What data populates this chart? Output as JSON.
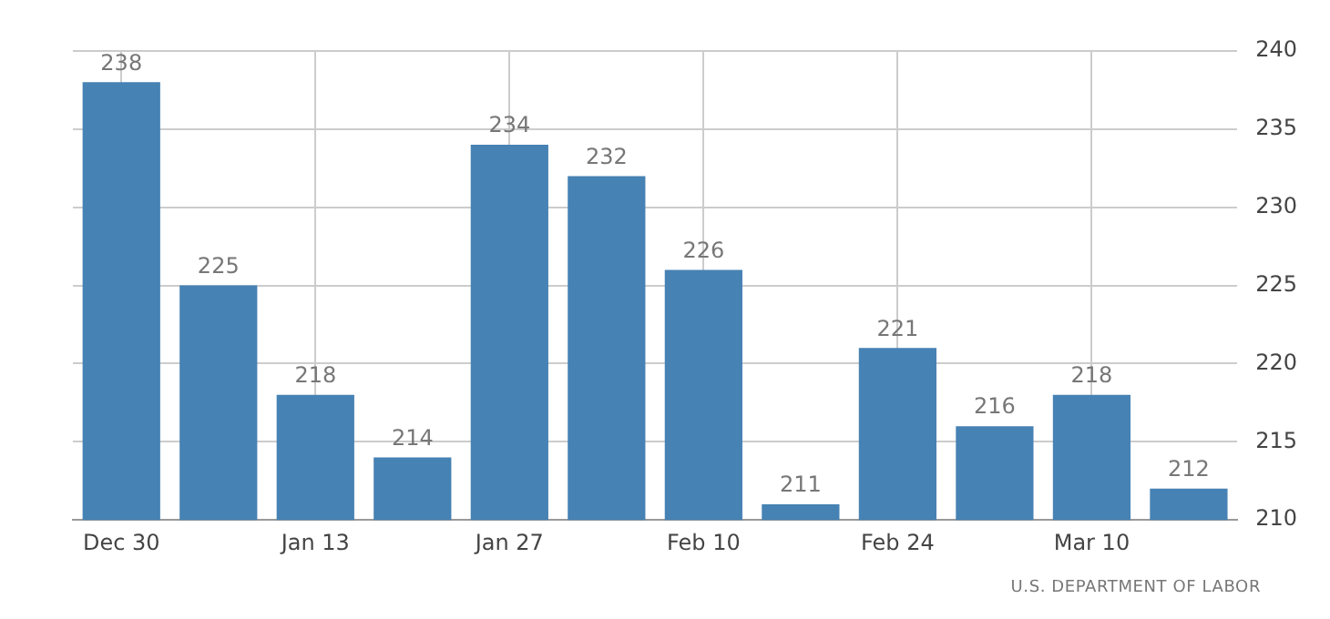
{
  "chart_data": {
    "type": "bar",
    "categories": [
      "Dec 30",
      null,
      "Jan 13",
      null,
      "Jan 27",
      null,
      "Feb 10",
      null,
      "Feb 24",
      null,
      "Mar 10",
      null
    ],
    "values": [
      238,
      225,
      218,
      214,
      234,
      232,
      226,
      211,
      221,
      216,
      218,
      212
    ],
    "color": "#4682b4",
    "ylim": [
      210,
      240
    ],
    "yticks": [
      210,
      215,
      220,
      225,
      230,
      235,
      240
    ],
    "grid": true,
    "data_labels": true,
    "annotations": [
      "U.S. DEPARTMENT OF LABOR"
    ]
  }
}
